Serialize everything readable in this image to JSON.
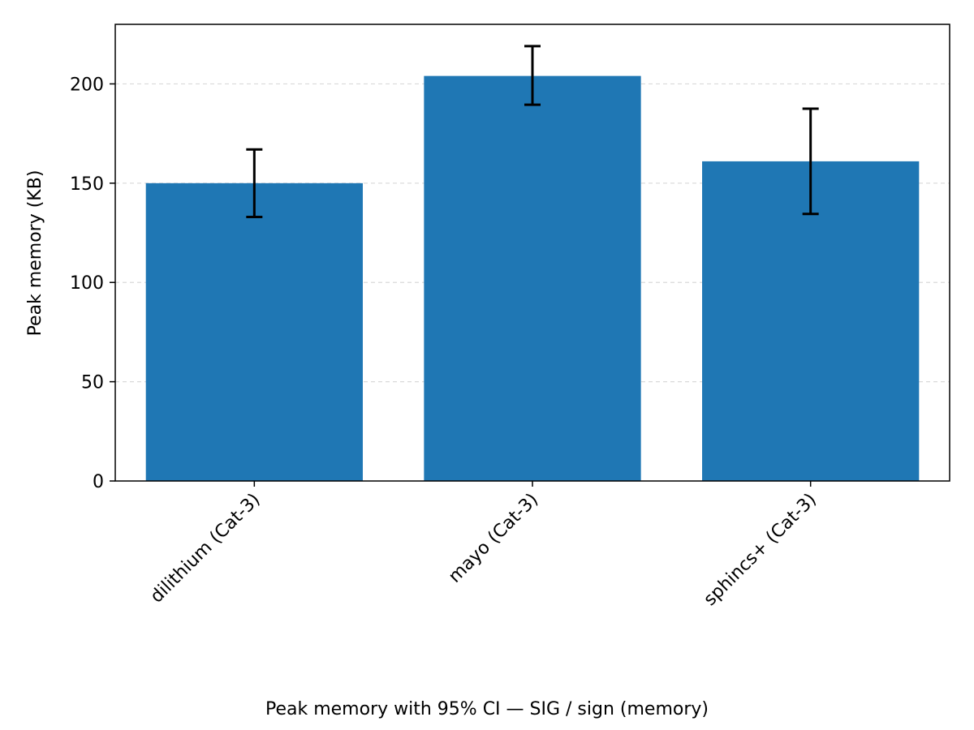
{
  "chart_data": {
    "type": "bar",
    "title": "",
    "caption": "Peak memory with 95% CI — SIG / sign (memory)",
    "xlabel": "",
    "ylabel": "Peak memory (KB)",
    "categories": [
      "dilithium (Cat-3)",
      "mayo (Cat-3)",
      "sphincs+ (Cat-3)"
    ],
    "values": [
      150,
      204,
      161
    ],
    "ci_lower": [
      133,
      189.5,
      134.5
    ],
    "ci_upper": [
      167,
      219,
      187.5
    ],
    "ylim": [
      0,
      230
    ],
    "yticks": [
      0,
      50,
      100,
      150,
      200
    ],
    "grid": "y-dashed",
    "colors": {
      "bar": "#1f77b4",
      "errorbar": "#000000",
      "grid": "#d9d9d9"
    }
  }
}
